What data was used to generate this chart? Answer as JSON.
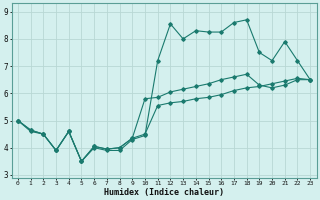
{
  "title": "",
  "xlabel": "Humidex (Indice chaleur)",
  "bg_color": "#d4f0ee",
  "line_color": "#1a7a6e",
  "grid_color": "#b8d8d4",
  "x_values": [
    0,
    1,
    2,
    3,
    4,
    5,
    6,
    7,
    8,
    9,
    10,
    11,
    12,
    13,
    14,
    15,
    16,
    17,
    18,
    19,
    20,
    21,
    22,
    23
  ],
  "y_line1": [
    5.0,
    4.6,
    4.5,
    3.9,
    4.6,
    3.5,
    4.0,
    3.9,
    3.9,
    4.3,
    4.45,
    7.2,
    8.55,
    8.0,
    8.3,
    8.25,
    8.25,
    8.6,
    8.7,
    7.5,
    7.2,
    7.9,
    7.2,
    6.5
  ],
  "y_line2": [
    5.0,
    4.65,
    4.5,
    3.9,
    4.6,
    3.5,
    4.05,
    3.95,
    4.0,
    4.35,
    5.8,
    5.85,
    6.05,
    6.15,
    6.25,
    6.35,
    6.5,
    6.6,
    6.7,
    6.3,
    6.2,
    6.3,
    6.5,
    6.5
  ],
  "y_line3": [
    5.0,
    4.65,
    4.5,
    3.9,
    4.6,
    3.5,
    4.05,
    3.95,
    4.0,
    4.35,
    4.5,
    5.55,
    5.65,
    5.7,
    5.8,
    5.85,
    5.95,
    6.1,
    6.2,
    6.25,
    6.35,
    6.45,
    6.55,
    6.5
  ],
  "ylim": [
    2.9,
    9.3
  ],
  "xlim": [
    -0.5,
    23.5
  ],
  "yticks": [
    3,
    4,
    5,
    6,
    7,
    8,
    9
  ],
  "xticks": [
    0,
    1,
    2,
    3,
    4,
    5,
    6,
    7,
    8,
    9,
    10,
    11,
    12,
    13,
    14,
    15,
    16,
    17,
    18,
    19,
    20,
    21,
    22,
    23
  ]
}
